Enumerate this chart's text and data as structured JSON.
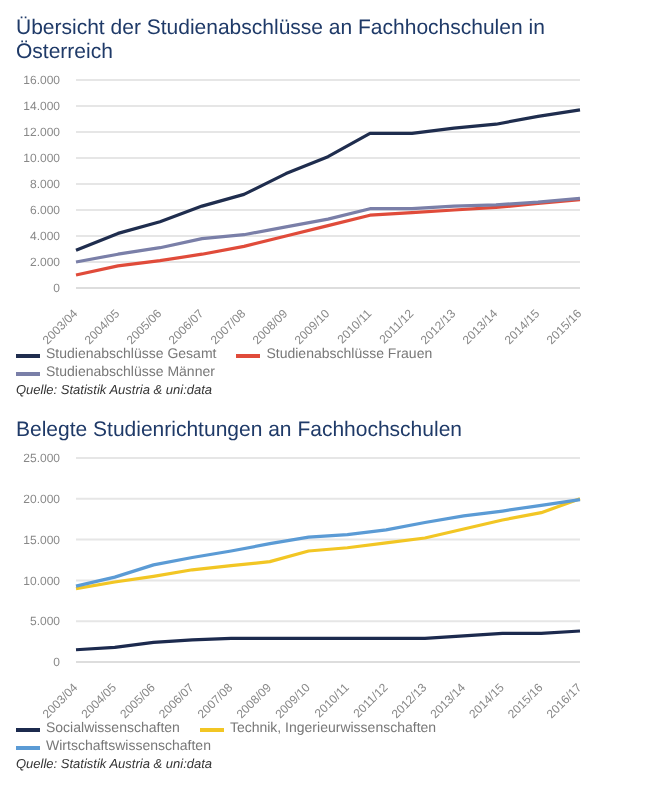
{
  "chart_data": [
    {
      "type": "line",
      "title": "Übersicht der Studienabschlüsse an Fachhochschulen in Österreich",
      "categories": [
        "2003/04",
        "2004/05",
        "2005/06",
        "2006/07",
        "2007/08",
        "2008/09",
        "2009/10",
        "2010/11",
        "2011/12",
        "2012/13",
        "2013/14",
        "2014/15",
        "2015/16"
      ],
      "series": [
        {
          "name": "Studienabschlüsse Gesamt",
          "color": "#1f2d4e",
          "values": [
            2900,
            4200,
            5100,
            6300,
            7200,
            8800,
            10100,
            11900,
            11900,
            12300,
            12600,
            13200,
            13700
          ]
        },
        {
          "name": "Studienabschlüsse Frauen",
          "color": "#e04b3a",
          "values": [
            1000,
            1700,
            2100,
            2600,
            3200,
            4000,
            4800,
            5600,
            5800,
            6000,
            6200,
            6500,
            6800
          ]
        },
        {
          "name": "Studienabschlüsse Männer",
          "color": "#7a7fa8",
          "values": [
            2000,
            2600,
            3100,
            3800,
            4100,
            4700,
            5300,
            6100,
            6100,
            6300,
            6400,
            6600,
            6900
          ]
        }
      ],
      "ylim": [
        0,
        16000
      ],
      "yticks": [
        {
          "value": 0,
          "label": "0"
        },
        {
          "value": 2000,
          "label": "2.000"
        },
        {
          "value": 4000,
          "label": "4.000"
        },
        {
          "value": 6000,
          "label": "6.000"
        },
        {
          "value": 8000,
          "label": "8.000"
        },
        {
          "value": 10000,
          "label": "10.000"
        },
        {
          "value": 12000,
          "label": "12.000"
        },
        {
          "value": 14000,
          "label": "14.000"
        },
        {
          "value": 16000,
          "label": "16.000"
        }
      ],
      "grid": "y",
      "legend": "bottom",
      "marker": "none",
      "annotations": [
        "Quelle: Statistik Austria & uni:data"
      ]
    },
    {
      "type": "line",
      "title": "Belegte Studienrichtungen an Fachhochschulen",
      "categories": [
        "2003/04",
        "2004/05",
        "2005/06",
        "2006/07",
        "2007/08",
        "2008/09",
        "2009/10",
        "2010/11",
        "2011/12",
        "2012/13",
        "2013/14",
        "2014/15",
        "2015/16",
        "2016/17"
      ],
      "series": [
        {
          "name": "Socialwissenschaften",
          "color": "#1c2a4e",
          "values": [
            1500,
            1800,
            2400,
            2700,
            2900,
            2900,
            2900,
            2900,
            2900,
            2900,
            3200,
            3500,
            3500,
            3800
          ]
        },
        {
          "name": "Technik, Ingerieurwissenschaften",
          "color": "#f2c624",
          "values": [
            9000,
            9800,
            10500,
            11300,
            11800,
            12300,
            13600,
            14000,
            14600,
            15200,
            16300,
            17400,
            18300,
            20000
          ]
        },
        {
          "name": "Wirtschaftswissenschaften",
          "color": "#5b9bd5",
          "values": [
            9300,
            10400,
            11900,
            12800,
            13600,
            14500,
            15300,
            15600,
            16200,
            17100,
            17900,
            18500,
            19200,
            19900
          ]
        }
      ],
      "ylim": [
        0,
        25000
      ],
      "yticks": [
        {
          "value": 0,
          "label": "0"
        },
        {
          "value": 5000,
          "label": "5.000"
        },
        {
          "value": 10000,
          "label": "10.000"
        },
        {
          "value": 15000,
          "label": "15.000"
        },
        {
          "value": 20000,
          "label": "20.000"
        },
        {
          "value": 25000,
          "label": "25.000"
        }
      ],
      "grid": "y",
      "legend": "bottom",
      "marker": "none",
      "annotations": [
        "Quelle: Statistik Austria & uni:data"
      ]
    }
  ]
}
